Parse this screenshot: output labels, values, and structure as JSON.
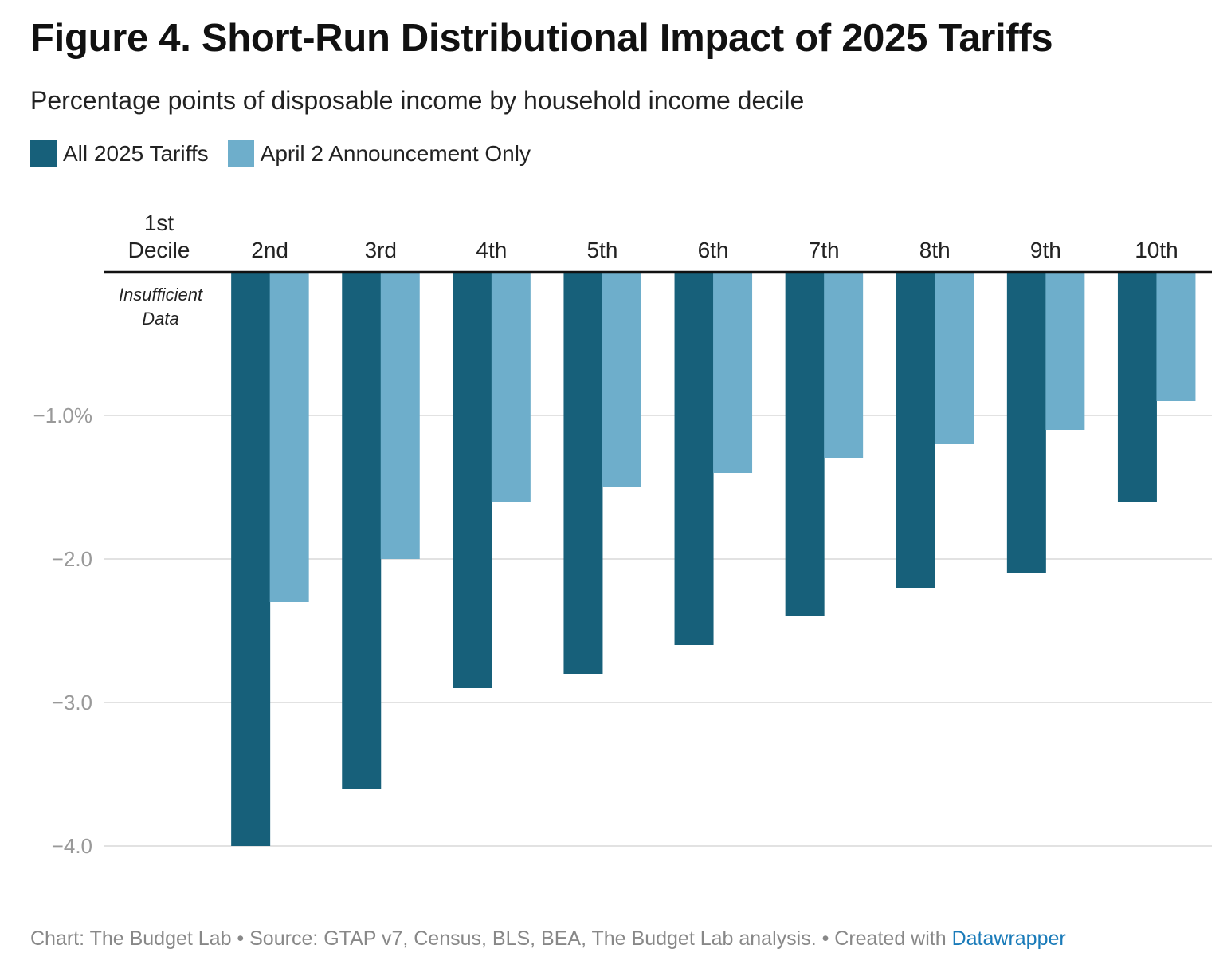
{
  "title": "Figure 4. Short-Run Distributional Impact of 2025 Tariffs",
  "subtitle": "Percentage points of disposable income by household income decile",
  "legend": [
    {
      "label": "All 2025 Tariffs",
      "color": "#17607a"
    },
    {
      "label": "April 2 Announcement Only",
      "color": "#6eaecb"
    }
  ],
  "chart_data": {
    "type": "bar",
    "categories": [
      "1st Decile",
      "2nd",
      "3rd",
      "4th",
      "5th",
      "6th",
      "7th",
      "8th",
      "9th",
      "10th"
    ],
    "series": [
      {
        "name": "All 2025 Tariffs",
        "color": "#17607a",
        "values": [
          null,
          -4.0,
          -3.6,
          -2.9,
          -2.8,
          -2.6,
          -2.4,
          -2.2,
          -2.1,
          -1.6
        ]
      },
      {
        "name": "April 2 Announcement Only",
        "color": "#6eaecb",
        "values": [
          null,
          -2.3,
          -2.0,
          -1.6,
          -1.5,
          -1.4,
          -1.3,
          -1.2,
          -1.1,
          -0.9
        ]
      }
    ],
    "ylim": [
      -4.0,
      0
    ],
    "yticks": [
      {
        "value": -1.0,
        "label": "−1.0%"
      },
      {
        "value": -2.0,
        "label": "−2.0"
      },
      {
        "value": -3.0,
        "label": "−3.0"
      },
      {
        "value": -4.0,
        "label": "−4.0"
      }
    ],
    "grid": true,
    "legend_position": "top-left",
    "annotations": [
      {
        "category": "1st Decile",
        "text": "Insufficient Data"
      }
    ]
  },
  "footer": {
    "text": "Chart: The Budget Lab • Source: GTAP v7, Census, BLS, BEA, The Budget Lab analysis. • Created with ",
    "link": "Datawrapper"
  }
}
